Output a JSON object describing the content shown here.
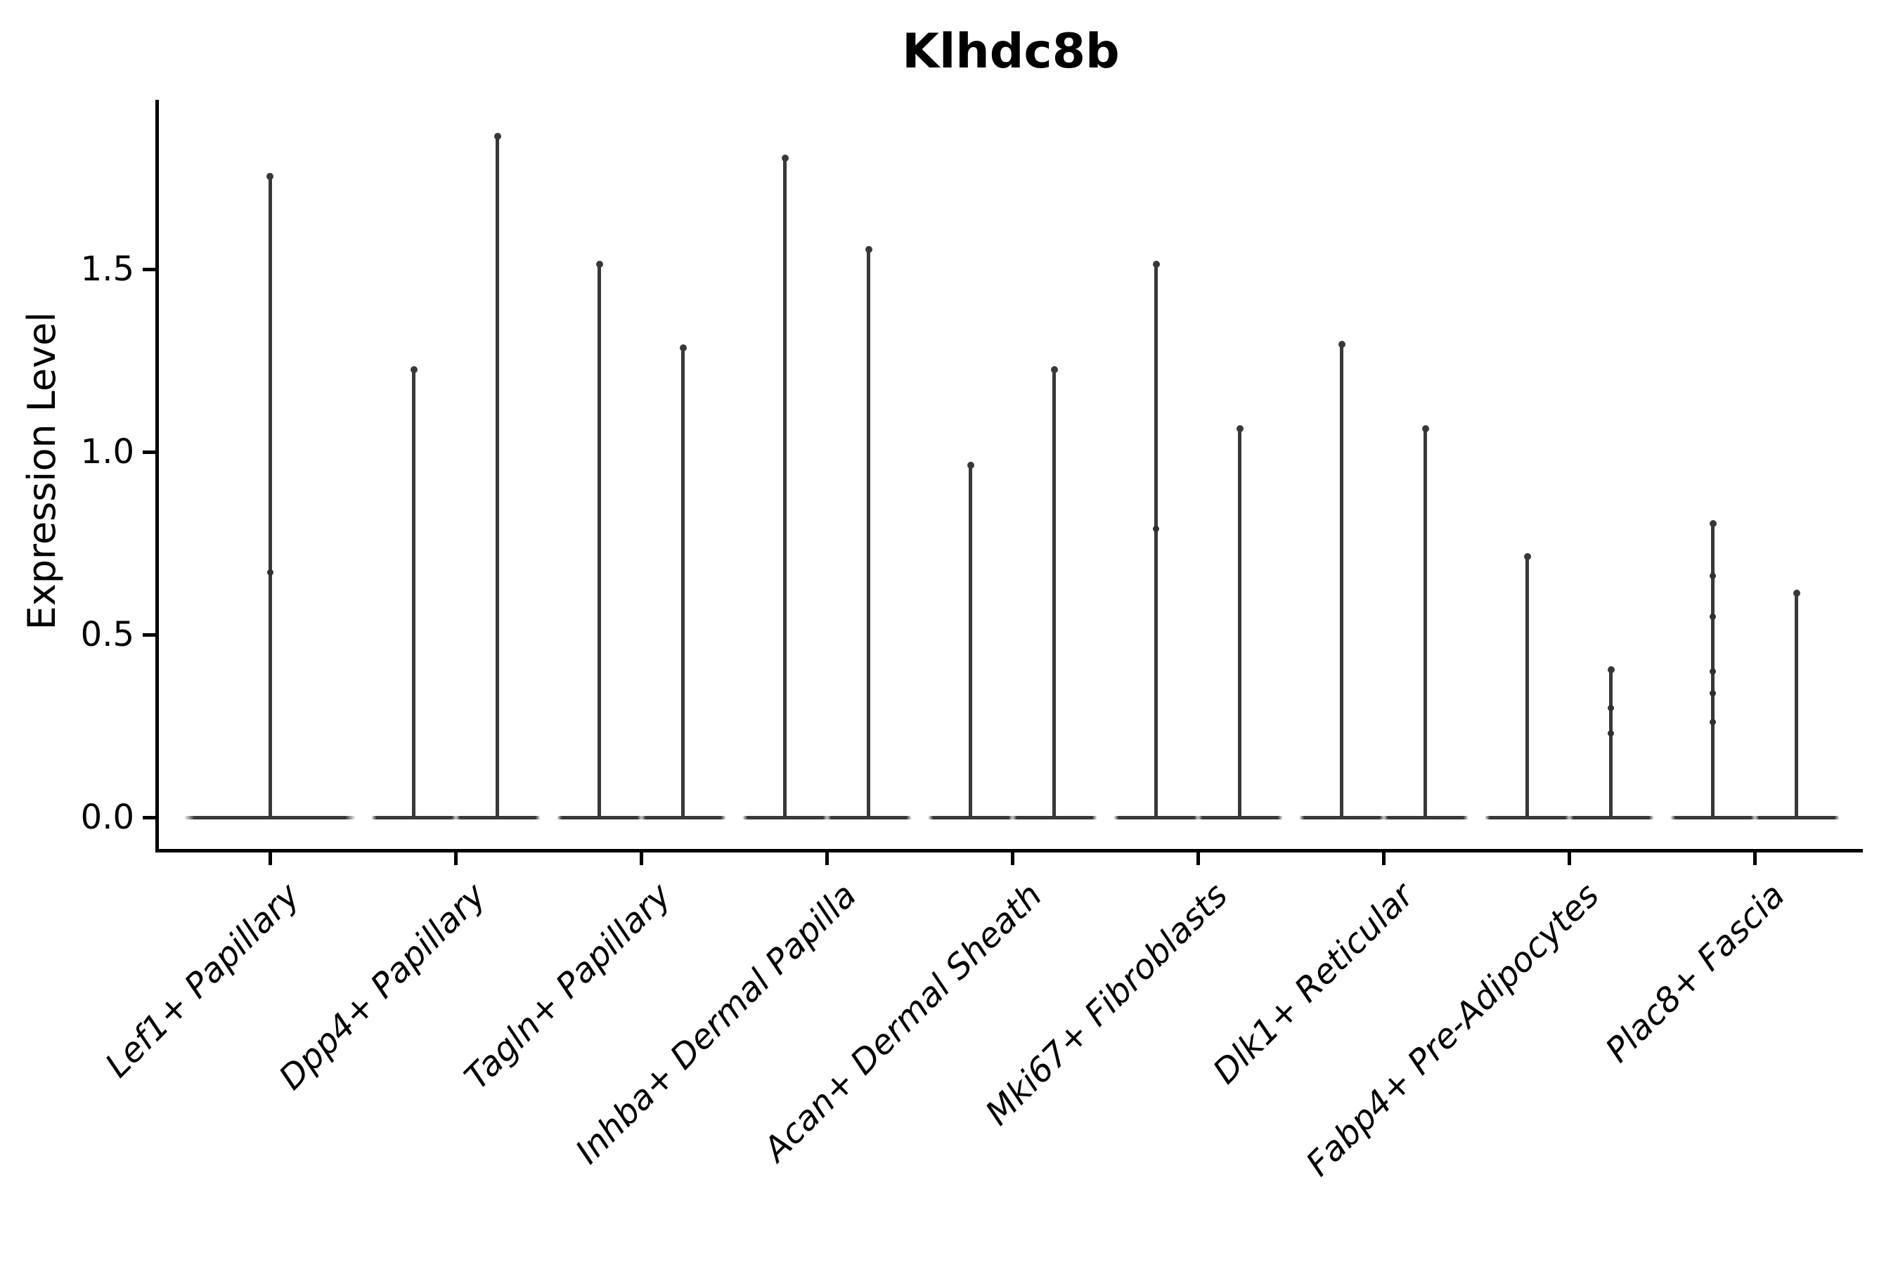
{
  "figure": {
    "title": "Klhdc8b",
    "y_axis_label": "Expression Level"
  },
  "colors": {
    "background": "#ffffff",
    "axis": "#000000",
    "text": "#000000",
    "violin": "#383838",
    "dot": "#2f2f2f"
  },
  "chart_data": {
    "type": "violin",
    "title": "Klhdc8b",
    "xlabel": "",
    "ylabel": "Expression Level",
    "ylim": [
      0,
      1.96
    ],
    "ytick_labels": [
      "0.0",
      "0.5",
      "1.0",
      "1.5"
    ],
    "ytick_values": [
      0.0,
      0.5,
      1.0,
      1.5
    ],
    "grid": false,
    "legend": "none",
    "categories": [
      "Lef1+ Papillary",
      "Dpp4+ Papillary",
      "Tagln+ Papillary",
      "Inhba+ Dermal Papilla",
      "Acan+ Dermal Sheath",
      "Mki67+ Fibroblasts",
      "Dlk1+ Reticular",
      "Fabp4+ Pre-Adipocytes",
      "Plac8+ Fascia"
    ],
    "series": [
      {
        "category": "Lef1+ Papillary",
        "violins": [
          {
            "max": 1.76,
            "points": [
              0.67
            ]
          }
        ]
      },
      {
        "category": "Dpp4+ Papillary",
        "violins": [
          {
            "max": 1.23,
            "points": []
          },
          {
            "max": 1.87,
            "points": []
          }
        ]
      },
      {
        "category": "Tagln+ Papillary",
        "violins": [
          {
            "max": 1.52,
            "points": []
          },
          {
            "max": 1.29,
            "points": []
          }
        ]
      },
      {
        "category": "Inhba+ Dermal Papilla",
        "violins": [
          {
            "max": 1.81,
            "points": []
          },
          {
            "max": 1.56,
            "points": []
          }
        ]
      },
      {
        "category": "Acan+ Dermal Sheath",
        "violins": [
          {
            "max": 0.97,
            "points": []
          },
          {
            "max": 1.23,
            "points": []
          }
        ]
      },
      {
        "category": "Mki67+ Fibroblasts",
        "violins": [
          {
            "max": 1.52,
            "points": [
              0.79
            ]
          },
          {
            "max": 1.07,
            "points": []
          }
        ]
      },
      {
        "category": "Dlk1+ Reticular",
        "violins": [
          {
            "max": 1.3,
            "points": []
          },
          {
            "max": 1.07,
            "points": []
          }
        ]
      },
      {
        "category": "Fabp4+ Pre-Adipocytes",
        "violins": [
          {
            "max": 0.72,
            "points": []
          },
          {
            "max": 0.41,
            "points": [
              0.3,
              0.23
            ]
          }
        ]
      },
      {
        "category": "Plac8+ Fascia",
        "violins": [
          {
            "max": 0.81,
            "points": [
              0.66,
              0.55,
              0.4,
              0.34,
              0.26
            ]
          },
          {
            "max": 0.62,
            "points": []
          }
        ]
      }
    ]
  }
}
